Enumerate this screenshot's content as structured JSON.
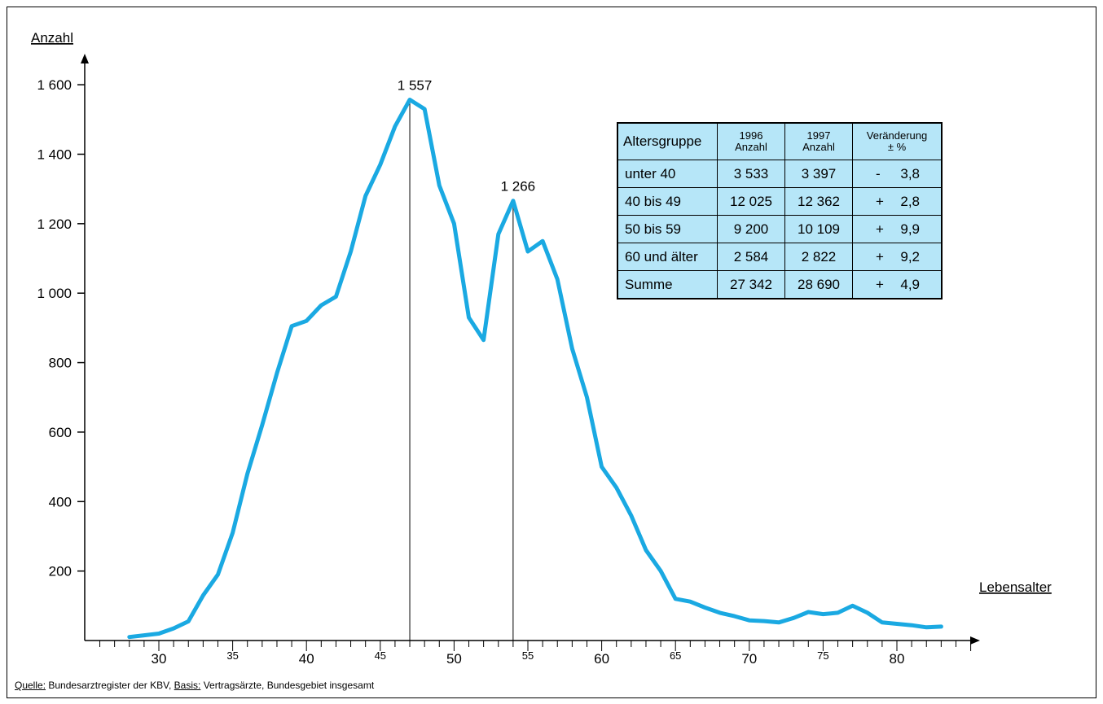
{
  "chart_data": {
    "type": "line",
    "ylabel": "Anzahl",
    "xlabel": "Lebensalter",
    "xlim": [
      26,
      85
    ],
    "ylim": [
      0,
      1700
    ],
    "yticks": [
      {
        "value": 200,
        "label": "200"
      },
      {
        "value": 400,
        "label": "400"
      },
      {
        "value": 600,
        "label": "600"
      },
      {
        "value": 800,
        "label": "800"
      },
      {
        "value": 1000,
        "label": "1 000"
      },
      {
        "value": 1200,
        "label": "1 200"
      },
      {
        "value": 1400,
        "label": "1 400"
      },
      {
        "value": 1600,
        "label": "1 600"
      }
    ],
    "xticks": [
      {
        "value": 30,
        "label": "30"
      },
      {
        "value": 35,
        "label": "35"
      },
      {
        "value": 40,
        "label": "40"
      },
      {
        "value": 45,
        "label": "45"
      },
      {
        "value": 50,
        "label": "50"
      },
      {
        "value": 55,
        "label": "55"
      },
      {
        "value": 60,
        "label": "60"
      },
      {
        "value": 65,
        "label": "65"
      },
      {
        "value": 70,
        "label": "70"
      },
      {
        "value": 75,
        "label": "75"
      },
      {
        "value": 80,
        "label": "80"
      }
    ],
    "series": [
      {
        "color": "#1aa9e2",
        "x": [
          28,
          29,
          30,
          31,
          32,
          33,
          34,
          35,
          36,
          37,
          38,
          39,
          40,
          41,
          42,
          43,
          44,
          45,
          46,
          47,
          48,
          49,
          50,
          51,
          52,
          53,
          54,
          55,
          56,
          57,
          58,
          59,
          60,
          61,
          62,
          63,
          64,
          65,
          66,
          67,
          68,
          69,
          70,
          71,
          72,
          73,
          74,
          75,
          76,
          77,
          78,
          79,
          80,
          81,
          82,
          83
        ],
        "y": [
          10,
          15,
          20,
          35,
          55,
          130,
          190,
          310,
          480,
          620,
          770,
          905,
          920,
          965,
          990,
          1120,
          1280,
          1370,
          1480,
          1557,
          1530,
          1310,
          1200,
          930,
          865,
          1170,
          1266,
          1120,
          1150,
          1040,
          840,
          700,
          500,
          440,
          360,
          260,
          200,
          120,
          112,
          95,
          80,
          70,
          58,
          56,
          52,
          65,
          82,
          76,
          80,
          100,
          80,
          52,
          48,
          44,
          38,
          40
        ]
      }
    ],
    "annotations": [
      {
        "x": 47,
        "y": 1557,
        "text": "1 557"
      },
      {
        "x": 54,
        "y": 1266,
        "text": "1 266"
      }
    ],
    "grid": false,
    "legend": "none"
  },
  "table": {
    "headers": {
      "group": "Altersgruppe",
      "y1996_year": "1996",
      "y1996_sub": "Anzahl",
      "y1997_year": "1997",
      "y1997_sub": "Anzahl",
      "change_title": "Veränderung",
      "change_sub": "± %"
    },
    "rows": [
      {
        "group": "unter 40",
        "n1996": "3 533",
        "n1997": "3 397",
        "sign": "-",
        "pct": "3,8"
      },
      {
        "group": "40 bis 49",
        "n1996": "12 025",
        "n1997": "12 362",
        "sign": "+",
        "pct": "2,8"
      },
      {
        "group": "50 bis 59",
        "n1996": "9 200",
        "n1997": "10 109",
        "sign": "+",
        "pct": "9,9"
      },
      {
        "group": "60 und älter",
        "n1996": "2 584",
        "n1997": "2 822",
        "sign": "+",
        "pct": "9,2"
      },
      {
        "group": "Summe",
        "n1996": "27 342",
        "n1997": "28 690",
        "sign": "+",
        "pct": "4,9"
      }
    ]
  },
  "source": {
    "quelle_label": "Quelle:",
    "quelle_text": " Bundesarztregister der KBV, ",
    "basis_label": "Basis:",
    "basis_text": " Vertragsärzte, Bundesgebiet insgesamt"
  }
}
